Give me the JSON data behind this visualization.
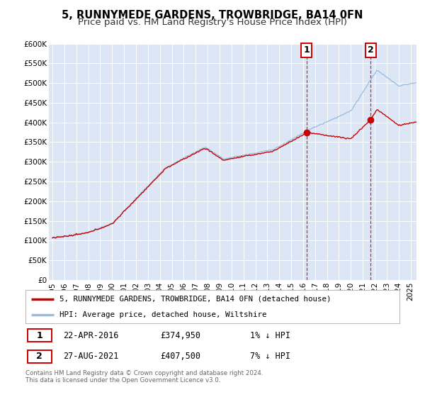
{
  "title": "5, RUNNYMEDE GARDENS, TROWBRIDGE, BA14 0FN",
  "subtitle": "Price paid vs. HM Land Registry's House Price Index (HPI)",
  "ylim": [
    0,
    600000
  ],
  "yticks": [
    0,
    50000,
    100000,
    150000,
    200000,
    250000,
    300000,
    350000,
    400000,
    450000,
    500000,
    550000,
    600000
  ],
  "ytick_labels": [
    "£0",
    "£50K",
    "£100K",
    "£150K",
    "£200K",
    "£250K",
    "£300K",
    "£350K",
    "£400K",
    "£450K",
    "£500K",
    "£550K",
    "£600K"
  ],
  "xlim_start": 1994.7,
  "xlim_end": 2025.5,
  "bg_color": "#dce6f5",
  "grid_color": "#ffffff",
  "red_line_color": "#cc0000",
  "blue_line_color": "#99bbdd",
  "marker1_date": 2016.3,
  "marker1_value": 374950,
  "marker2_date": 2021.65,
  "marker2_value": 407500,
  "legend_red_label": "5, RUNNYMEDE GARDENS, TROWBRIDGE, BA14 0FN (detached house)",
  "legend_blue_label": "HPI: Average price, detached house, Wiltshire",
  "annotation1_date": "22-APR-2016",
  "annotation1_price": "£374,950",
  "annotation1_hpi": "1% ↓ HPI",
  "annotation2_date": "27-AUG-2021",
  "annotation2_price": "£407,500",
  "annotation2_hpi": "7% ↓ HPI",
  "footer_text": "Contains HM Land Registry data © Crown copyright and database right 2024.\nThis data is licensed under the Open Government Licence v3.0.",
  "title_fontsize": 10.5,
  "subtitle_fontsize": 9.5
}
